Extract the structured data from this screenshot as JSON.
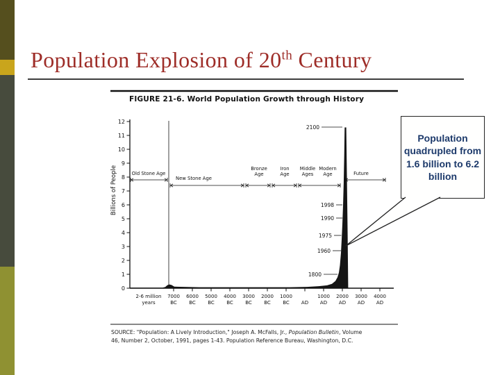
{
  "slide": {
    "title_prefix": "Population Explosion of 20",
    "title_superscript": "th",
    "title_suffix": " Century"
  },
  "callout": {
    "text": "Population quadrupled from 1.6 billion to 6.2 billion",
    "text_color": "#1d3a6b"
  },
  "figure": {
    "source": {
      "line1_a": "SOURCE: \"Population: A Lively Introduction,\" Joseph A. McFalls, Jr., ",
      "line1_b": "Population Bulletin",
      "line1_c": ", Volume",
      "line2": "46, Number 2, October, 1991, pages 1-43. Population Reference Bureau, Washington, D.C."
    }
  },
  "colors": {
    "title_red": "#9e2d28",
    "stripe_top": "#554f1e",
    "stripe_gold": "#c9a51c",
    "stripe_middle": "#474b3d",
    "stripe_bottom": "#8f9132",
    "chart_ink": "#111111"
  },
  "chart_data": {
    "type": "area",
    "title": "FIGURE 21-6. World Population Growth through History",
    "xlabel": "",
    "ylabel": "Billions of People",
    "ylim": [
      0,
      12
    ],
    "grid": false,
    "legend": "none",
    "y_ticks": [
      "12",
      "11",
      "10",
      "9",
      "8",
      "7",
      "6",
      "5",
      "4",
      "3",
      "2",
      "1",
      "0"
    ],
    "x_first_tick": {
      "top": "2-6 million",
      "bottom": "years"
    },
    "x_ticks": [
      {
        "top": "7000",
        "bottom": "BC"
      },
      {
        "top": "6000",
        "bottom": "BC"
      },
      {
        "top": "5000",
        "bottom": "BC"
      },
      {
        "top": "4000",
        "bottom": "BC"
      },
      {
        "top": "3000",
        "bottom": "BC"
      },
      {
        "top": "2000",
        "bottom": "BC"
      },
      {
        "top": "1000",
        "bottom": "BC"
      },
      {
        "top": "",
        "bottom": "AD"
      },
      {
        "top": "1000",
        "bottom": "AD"
      },
      {
        "top": "2000",
        "bottom": "AD"
      },
      {
        "top": "3000",
        "bottom": "AD"
      },
      {
        "top": "4000",
        "bottom": "AD"
      }
    ],
    "era_labels": [
      "Old Stone Age",
      "New Stone Age",
      "Bronze Age",
      "Iron Age",
      "Middle Ages",
      "Modern Age",
      "Future"
    ],
    "annotations": [
      {
        "label": "2100",
        "approx_billions": 11.6
      },
      {
        "label": "1998",
        "approx_billions": 6.1
      },
      {
        "label": "1990",
        "approx_billions": 5.3
      },
      {
        "label": "1975",
        "approx_billions": 4.0
      },
      {
        "label": "1960",
        "approx_billions": 3.0
      },
      {
        "label": "1800",
        "approx_billions": 1.0
      }
    ],
    "series": [
      {
        "name": "World population (billions)",
        "points": [
          {
            "x": "2-6 million years ago",
            "y": 0.0
          },
          {
            "x": "7000 BC",
            "y": 0.01
          },
          {
            "x": "1000 BC",
            "y": 0.05
          },
          {
            "x": "AD 1",
            "y": 0.25
          },
          {
            "x": "1000 AD",
            "y": 0.3
          },
          {
            "x": "1800",
            "y": 1.0
          },
          {
            "x": "1900",
            "y": 1.6
          },
          {
            "x": "1960",
            "y": 3.0
          },
          {
            "x": "1975",
            "y": 4.0
          },
          {
            "x": "1990",
            "y": 5.3
          },
          {
            "x": "1998",
            "y": 6.0
          },
          {
            "x": "2100",
            "y": 11.5
          }
        ]
      }
    ]
  }
}
